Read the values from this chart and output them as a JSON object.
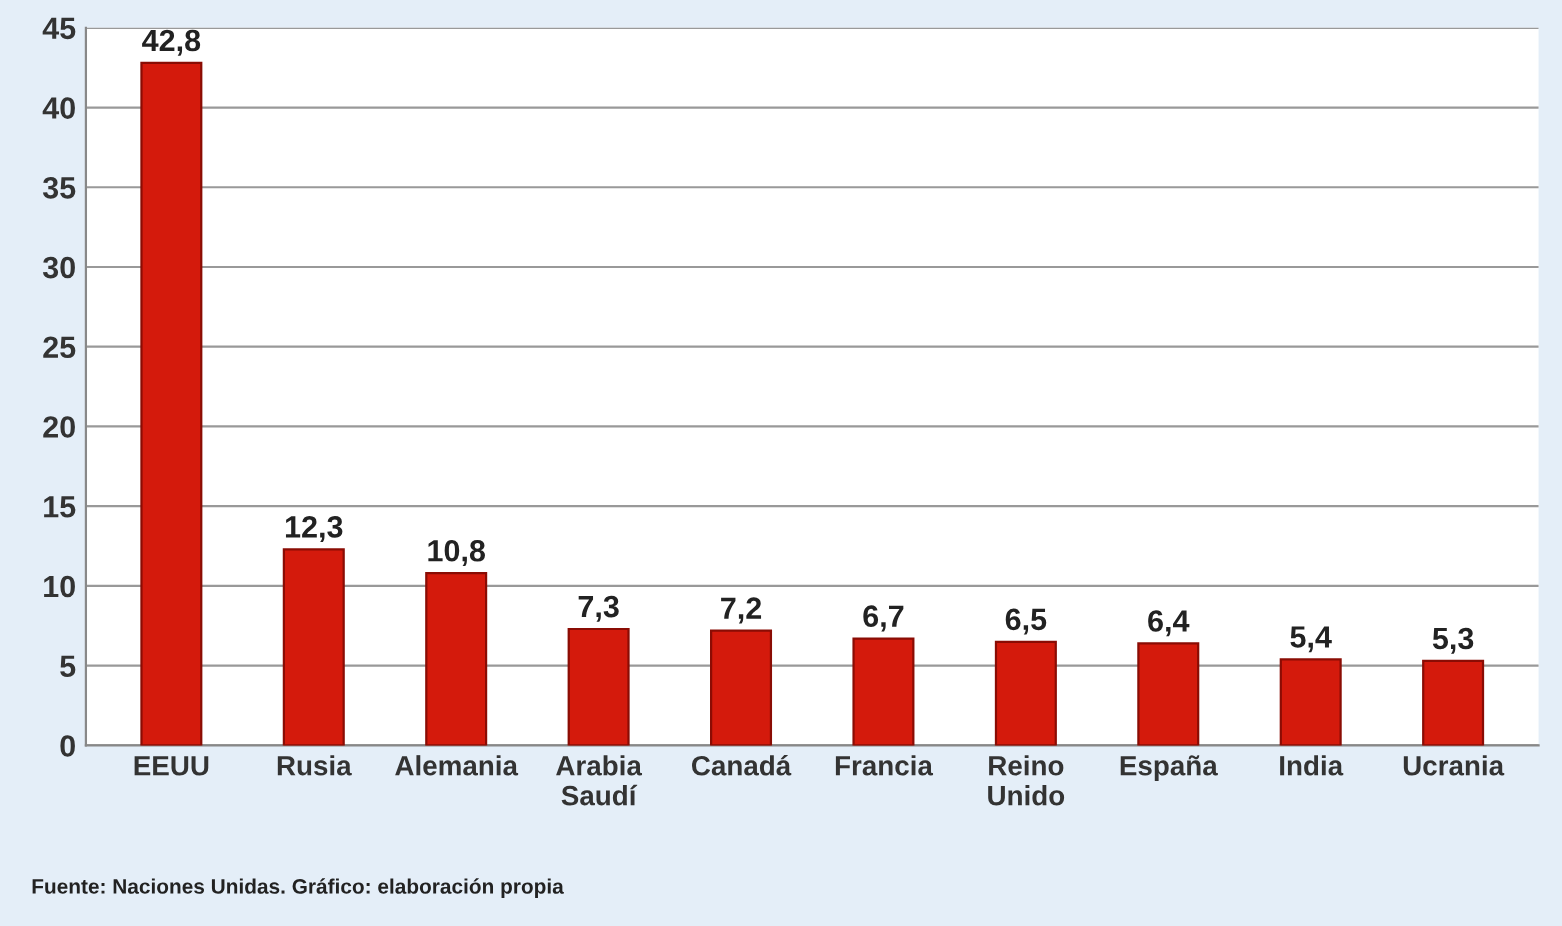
{
  "chart_data": {
    "type": "bar",
    "categories": [
      "EEUU",
      "Rusia",
      "Alemania",
      "Arabia\nSaudí",
      "Canadá",
      "Francia",
      "Reino\nUnido",
      "España",
      "India",
      "Ucrania"
    ],
    "values": [
      42.8,
      12.3,
      10.8,
      7.3,
      7.2,
      6.7,
      6.5,
      6.4,
      5.4,
      5.3
    ],
    "value_labels": [
      "42,8",
      "12,3",
      "10,8",
      "7,3",
      "7,2",
      "6,7",
      "6,5",
      "6,4",
      "5,4",
      "5,3"
    ],
    "color": "#d41a0c",
    "ylim": [
      0,
      45
    ],
    "yticks": [
      0,
      5,
      10,
      15,
      20,
      25,
      30,
      35,
      40,
      45
    ],
    "grid": "y",
    "annotations": [
      "Fuente: Naciones Unidas. Gráfico: elaboración propia"
    ]
  }
}
